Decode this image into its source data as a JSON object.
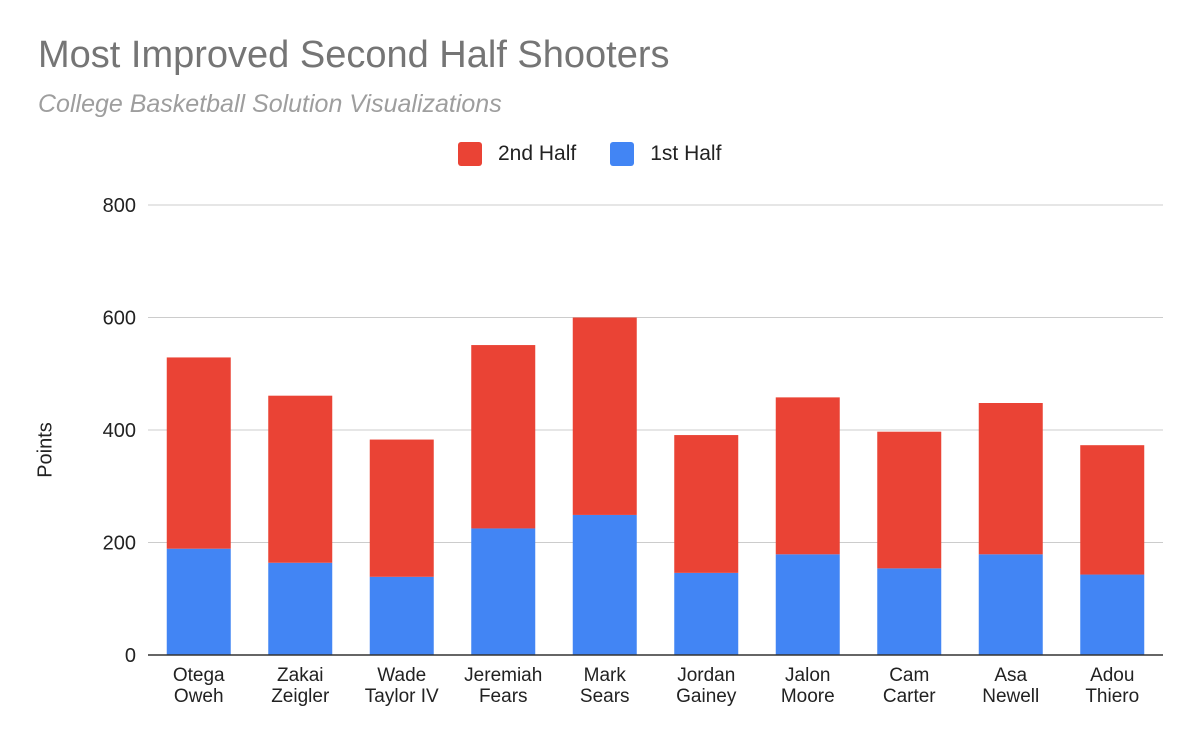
{
  "chart_data": {
    "type": "bar",
    "stacked": true,
    "title": "Most Improved Second Half Shooters",
    "subtitle": "College Basketball Solution Visualizations",
    "xlabel": "",
    "ylabel": "Points",
    "ylim": [
      0,
      800
    ],
    "yticks": [
      "0",
      "200",
      "400",
      "600",
      "800"
    ],
    "grid": true,
    "legend_position": "top",
    "categories": [
      [
        "Otega",
        "Oweh"
      ],
      [
        "Zakai",
        "Zeigler"
      ],
      [
        "Wade",
        "Taylor IV"
      ],
      [
        "Jeremiah",
        "Fears"
      ],
      [
        "Mark",
        "Sears"
      ],
      [
        "Jordan",
        "Gainey"
      ],
      [
        "Jalon",
        "Moore"
      ],
      [
        "Cam",
        "Carter"
      ],
      [
        "Asa",
        "Newell"
      ],
      [
        "Adou",
        "Thiero"
      ]
    ],
    "series": [
      {
        "name": "1st Half",
        "color": "#4285f4",
        "values": [
          189,
          164,
          139,
          225,
          249,
          146,
          179,
          154,
          179,
          143
        ]
      },
      {
        "name": "2nd Half",
        "color": "#ea4335",
        "values": [
          340,
          297,
          244,
          326,
          351,
          245,
          279,
          243,
          269,
          230
        ]
      }
    ],
    "legend": [
      {
        "name": "2nd Half",
        "color": "#ea4335"
      },
      {
        "name": "1st Half",
        "color": "#4285f4"
      }
    ]
  }
}
